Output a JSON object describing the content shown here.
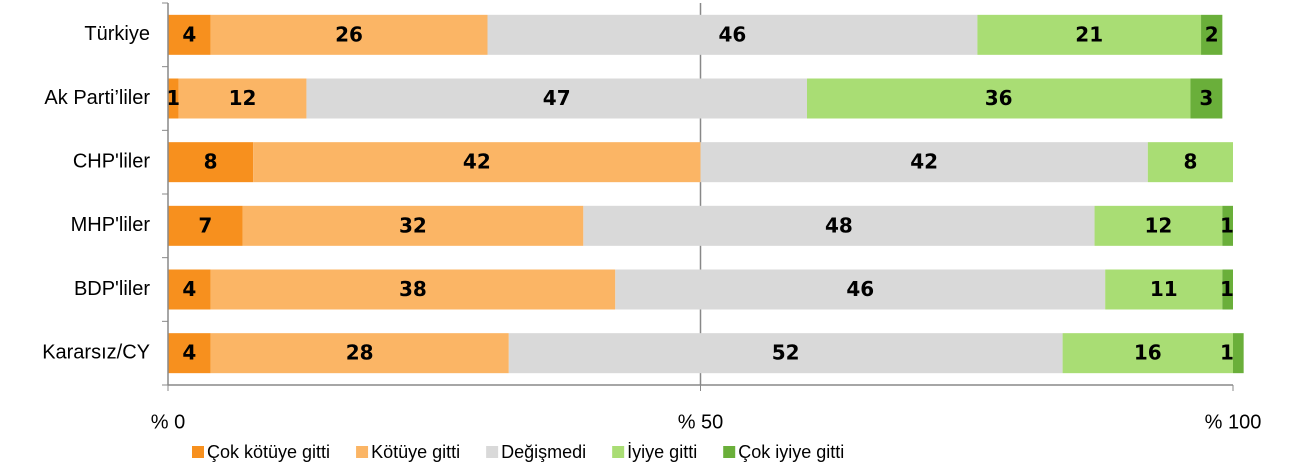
{
  "chart_data": {
    "type": "stacked_barh",
    "categories": [
      "Türkiye",
      "Ak Parti’liler",
      "CHP'liler",
      "MHP'liler",
      "BDP'liler",
      "Kararsız/CY"
    ],
    "series": [
      {
        "name": "Çok kötüye gitti",
        "color": "#f7901e",
        "values": [
          4,
          1,
          8,
          7,
          4,
          4
        ]
      },
      {
        "name": "Kötüye gitti",
        "color": "#fbb565",
        "values": [
          26,
          12,
          42,
          32,
          38,
          28
        ]
      },
      {
        "name": "Değişmedi",
        "color": "#d9d9d9",
        "values": [
          46,
          47,
          42,
          48,
          46,
          52
        ]
      },
      {
        "name": "İyiye gitti",
        "color": "#a9dd74",
        "values": [
          21,
          36,
          8,
          12,
          11,
          16
        ]
      },
      {
        "name": "Çok iyiye gitti",
        "color": "#6aaf3a",
        "values": [
          2,
          3,
          0,
          1,
          1,
          1
        ]
      }
    ],
    "xlim": [
      0,
      100
    ],
    "xticks": [
      {
        "value": 0,
        "label": "% 0"
      },
      {
        "value": 50,
        "label": "% 50"
      },
      {
        "value": 100,
        "label": "% 100"
      }
    ],
    "grid": true,
    "legend": "bottom"
  }
}
